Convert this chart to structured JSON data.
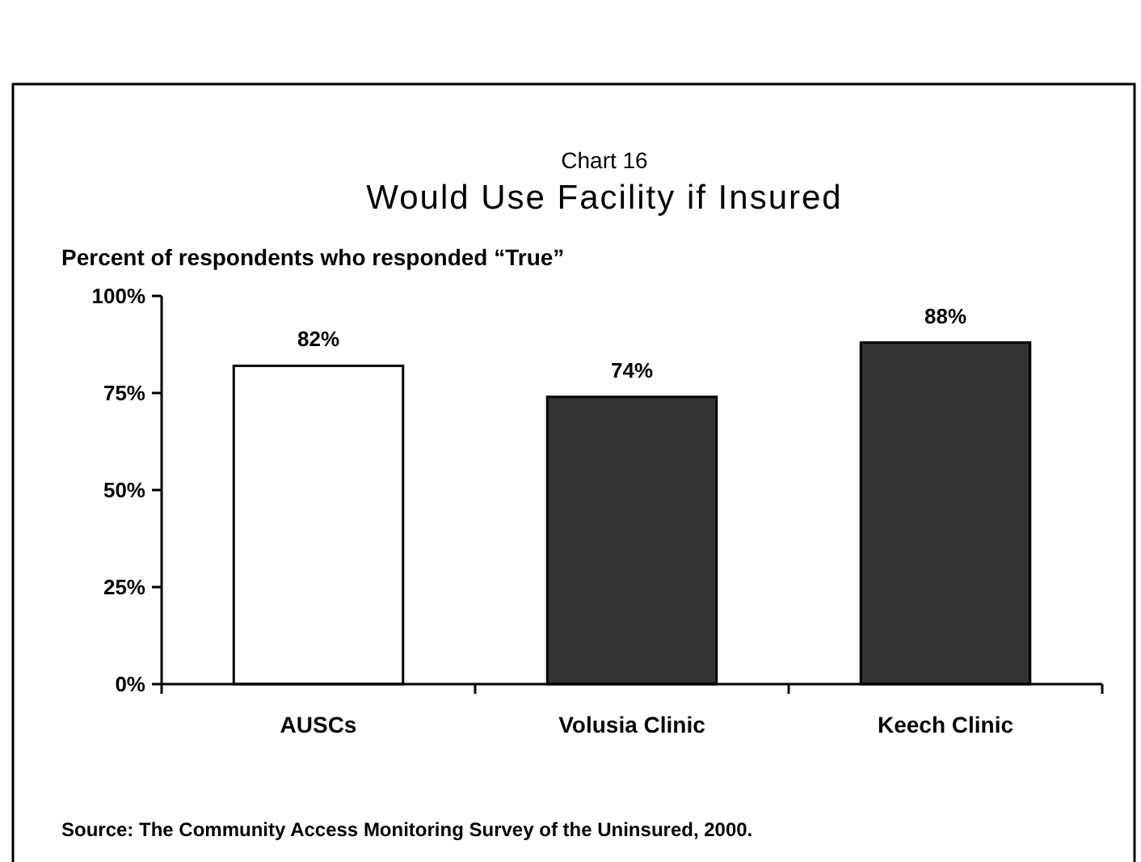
{
  "chart_data": {
    "type": "bar",
    "subtitle": "Chart 16",
    "title": "Would Use Facility if Insured",
    "ylabel": "Percent of respondents who responded “True”",
    "categories": [
      "AUSCs",
      "Volusia Clinic",
      "Keech Clinic"
    ],
    "values": [
      82,
      74,
      88
    ],
    "colors": [
      "#ffffff",
      "#333333",
      "#333333"
    ],
    "value_labels": [
      "82%",
      "74%",
      "88%"
    ],
    "ylim": [
      0,
      100
    ],
    "yticks": [
      {
        "value": 0,
        "label": "0%"
      },
      {
        "value": 25,
        "label": "25%"
      },
      {
        "value": 50,
        "label": "50%"
      },
      {
        "value": 75,
        "label": "75%"
      },
      {
        "value": 100,
        "label": "100%"
      }
    ],
    "grid": false,
    "annotations": [
      "Source: The Community Access Monitoring Survey of the Uninsured, 2000."
    ]
  }
}
